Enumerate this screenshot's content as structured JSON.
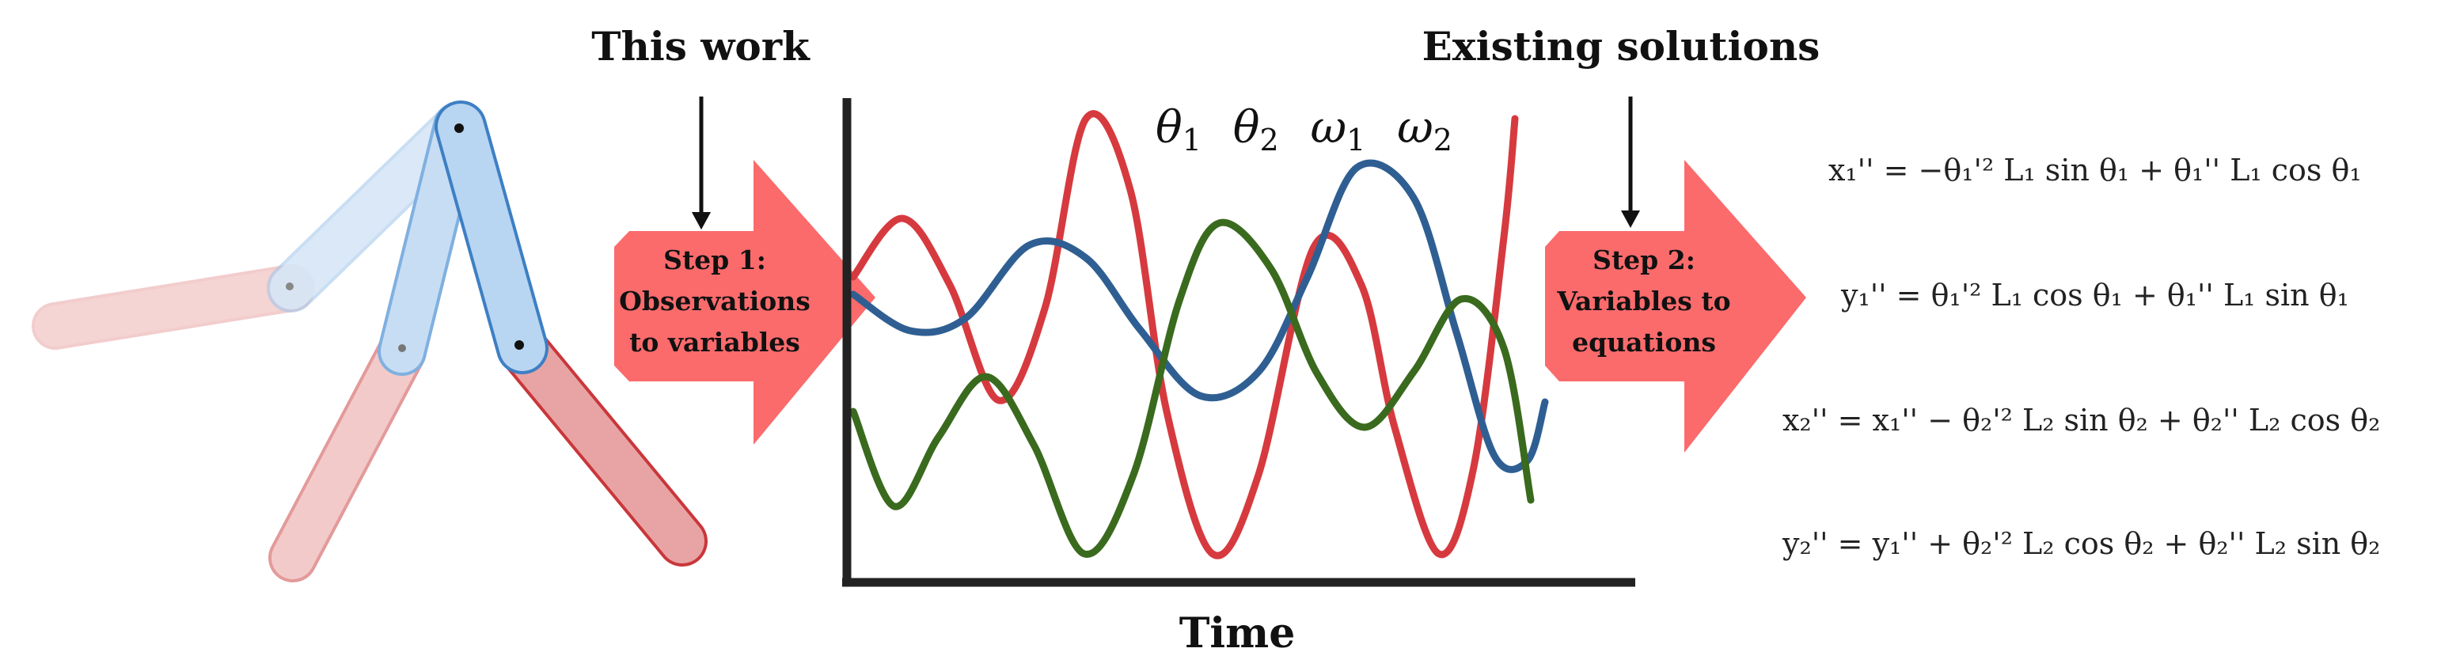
{
  "headings": {
    "this_work": "This work",
    "existing": "Existing solutions"
  },
  "steps": [
    {
      "lines": [
        "Step 1:",
        "Observations",
        "to variables"
      ]
    },
    {
      "lines": [
        "Step 2:",
        "Variables to",
        "equations"
      ]
    }
  ],
  "plot": {
    "variables": [
      "θ1",
      "θ2",
      "ω1",
      "ω2"
    ],
    "xlabel": "Time"
  },
  "equations": [
    "x₁'' = −θ₁'² L₁ sin θ₁ + θ₁'' L₁ cos θ₁",
    "y₁'' = θ₁'² L₁ cos θ₁ + θ₁'' L₁ sin θ₁",
    "x₂'' = x₁'' − θ₂'² L₂ sin θ₂ + θ₂'' L₂ cos θ₂",
    "y₂'' = y₁'' + θ₂'² L₂ cos θ₂ + θ₂'' L₂ sin θ₂"
  ],
  "colors": {
    "red": "#d63a3f",
    "blue": "#2f5f92",
    "green": "#3a6a1e",
    "arrow": "#fb6b6c",
    "pendulum_blue": "#5a93d0",
    "pendulum_red": "#cc4444"
  }
}
